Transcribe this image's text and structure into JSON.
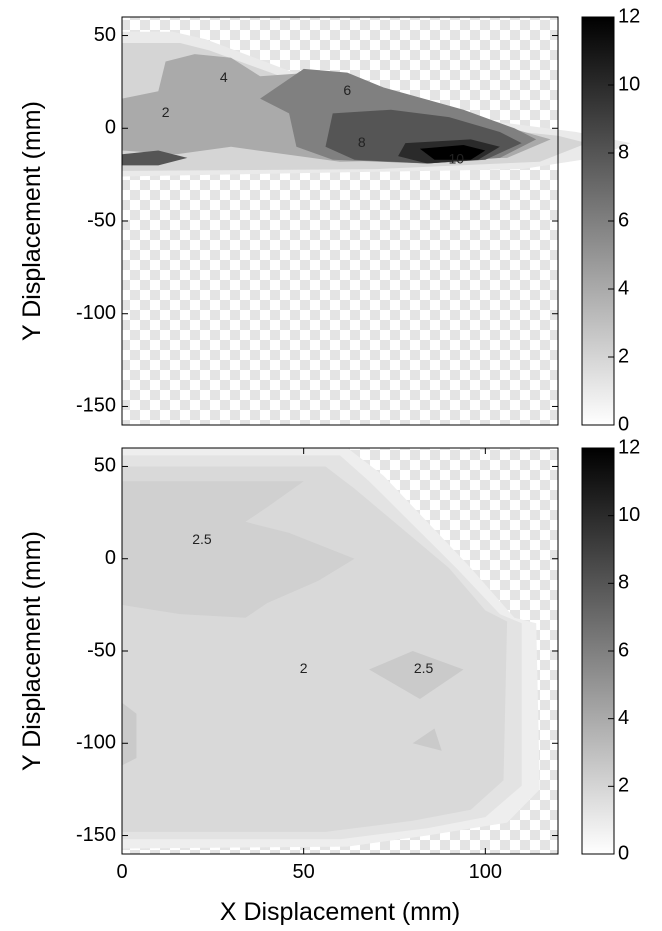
{
  "chart_data": [
    {
      "type": "contour",
      "title": "",
      "xlabel": "",
      "ylabel": "Y Displacement (mm)",
      "xlim": [
        0,
        120
      ],
      "ylim": [
        -160,
        60
      ],
      "xticks": [],
      "yticks": [
        "50",
        "0",
        "-50",
        "-100",
        "-150"
      ],
      "colorbar": {
        "min": 0,
        "max": 12,
        "ticks": [
          "12",
          "10",
          "8",
          "6",
          "4",
          "2",
          "0"
        ]
      },
      "contour_labels": [
        {
          "text": "2",
          "x": 12,
          "y": 8
        },
        {
          "text": "4",
          "x": 28,
          "y": 27
        },
        {
          "text": "6",
          "x": 62,
          "y": 20
        },
        {
          "text": "8",
          "x": 66,
          "y": -8
        },
        {
          "text": "10",
          "x": 92,
          "y": -17
        }
      ],
      "regions": [
        {
          "level": 1,
          "points": [
            [
              0,
              52
            ],
            [
              14,
              52
            ],
            [
              23,
              48
            ],
            [
              50,
              28
            ],
            [
              70,
              14
            ],
            [
              105,
              3
            ],
            [
              125,
              -2
            ],
            [
              140,
              -8
            ],
            [
              130,
              -16
            ],
            [
              110,
              -22
            ],
            [
              0,
              -26
            ]
          ]
        },
        {
          "level": 2,
          "points": [
            [
              0,
              46
            ],
            [
              16,
              46
            ],
            [
              24,
              42
            ],
            [
              48,
              25
            ],
            [
              70,
              10
            ],
            [
              100,
              0
            ],
            [
              120,
              -4
            ],
            [
              128,
              -8
            ],
            [
              115,
              -18
            ],
            [
              70,
              -22
            ],
            [
              0,
              -23
            ]
          ]
        },
        {
          "level": 4,
          "points": [
            [
              12,
              36
            ],
            [
              20,
              40
            ],
            [
              30,
              38
            ],
            [
              38,
              28
            ],
            [
              52,
              30
            ],
            [
              70,
              22
            ],
            [
              100,
              4
            ],
            [
              118,
              -6
            ],
            [
              106,
              -16
            ],
            [
              60,
              -18
            ],
            [
              30,
              -10
            ],
            [
              15,
              -14
            ],
            [
              0,
              -12
            ],
            [
              0,
              16
            ],
            [
              10,
              20
            ]
          ]
        },
        {
          "level": 6,
          "points": [
            [
              50,
              32
            ],
            [
              62,
              30
            ],
            [
              72,
              22
            ],
            [
              94,
              10
            ],
            [
              108,
              0
            ],
            [
              114,
              -6
            ],
            [
              104,
              -16
            ],
            [
              84,
              -19
            ],
            [
              58,
              -17
            ],
            [
              48,
              -10
            ],
            [
              46,
              8
            ],
            [
              38,
              16
            ]
          ]
        },
        {
          "level": 8,
          "points": [
            [
              58,
              8
            ],
            [
              74,
              10
            ],
            [
              90,
              6
            ],
            [
              104,
              -2
            ],
            [
              110,
              -8
            ],
            [
              100,
              -17
            ],
            [
              84,
              -19
            ],
            [
              64,
              -17
            ],
            [
              56,
              -10
            ]
          ]
        },
        {
          "level": 10,
          "points": [
            [
              78,
              -8
            ],
            [
              96,
              -6
            ],
            [
              104,
              -10
            ],
            [
              98,
              -17
            ],
            [
              84,
              -19
            ],
            [
              76,
              -15
            ]
          ]
        },
        {
          "level": 12,
          "points": [
            [
              82,
              -11
            ],
            [
              94,
              -9
            ],
            [
              100,
              -12
            ],
            [
              96,
              -17
            ],
            [
              86,
              -17
            ]
          ]
        },
        {
          "level": 8,
          "points": [
            [
              0,
              -14
            ],
            [
              10,
              -12
            ],
            [
              18,
              -16
            ],
            [
              10,
              -20
            ],
            [
              0,
              -20
            ]
          ]
        }
      ]
    },
    {
      "type": "contour",
      "title": "",
      "xlabel": "X Displacement (mm)",
      "ylabel": "Y Displacement (mm)",
      "xlim": [
        0,
        120
      ],
      "ylim": [
        -160,
        60
      ],
      "xticks": [
        "0",
        "50",
        "100"
      ],
      "yticks": [
        "50",
        "0",
        "-50",
        "-100",
        "-150"
      ],
      "colorbar": {
        "min": 0,
        "max": 12,
        "ticks": [
          "12",
          "10",
          "8",
          "6",
          "4",
          "2",
          "0"
        ]
      },
      "contour_labels": [
        {
          "text": "2.5",
          "x": 22,
          "y": 10
        },
        {
          "text": "2",
          "x": 50,
          "y": -60
        },
        {
          "text": "2.5",
          "x": 83,
          "y": -60
        }
      ],
      "regions": [
        {
          "level": 0.8,
          "points": [
            [
              0,
              60
            ],
            [
              62,
              60
            ],
            [
              72,
              45
            ],
            [
              96,
              -5
            ],
            [
              108,
              -32
            ],
            [
              114,
              -35
            ],
            [
              115,
              -125
            ],
            [
              106,
              -143
            ],
            [
              84,
              -150
            ],
            [
              62,
              -156
            ],
            [
              0,
              -157
            ]
          ]
        },
        {
          "level": 1.3,
          "points": [
            [
              0,
              56
            ],
            [
              60,
              56
            ],
            [
              68,
              42
            ],
            [
              92,
              -5
            ],
            [
              104,
              -30
            ],
            [
              110,
              -35
            ],
            [
              110,
              -123
            ],
            [
              100,
              -140
            ],
            [
              84,
              -146
            ],
            [
              60,
              -152
            ],
            [
              0,
              -152
            ]
          ]
        },
        {
          "level": 1.8,
          "points": [
            [
              0,
              50
            ],
            [
              56,
              50
            ],
            [
              64,
              38
            ],
            [
              90,
              -5
            ],
            [
              100,
              -28
            ],
            [
              106,
              -34
            ],
            [
              105,
              -120
            ],
            [
              96,
              -136
            ],
            [
              80,
              -142
            ],
            [
              56,
              -148
            ],
            [
              0,
              -148
            ]
          ]
        },
        {
          "level": 2.2,
          "points": [
            [
              0,
              42
            ],
            [
              50,
              42
            ],
            [
              40,
              28
            ],
            [
              34,
              20
            ],
            [
              46,
              14
            ],
            [
              64,
              0
            ],
            [
              54,
              -12
            ],
            [
              40,
              -24
            ],
            [
              34,
              -32
            ],
            [
              16,
              -30
            ],
            [
              0,
              -25
            ]
          ]
        },
        {
          "level": 2.5,
          "points": [
            [
              68,
              -60
            ],
            [
              80,
              -50
            ],
            [
              94,
              -60
            ],
            [
              82,
              -76
            ]
          ]
        },
        {
          "level": 2.5,
          "points": [
            [
              80,
              -100
            ],
            [
              86,
              -92
            ],
            [
              88,
              -104
            ]
          ]
        },
        {
          "level": 2.5,
          "points": [
            [
              0,
              -78
            ],
            [
              4,
              -84
            ],
            [
              4,
              -108
            ],
            [
              0,
              -112
            ]
          ]
        }
      ]
    }
  ]
}
